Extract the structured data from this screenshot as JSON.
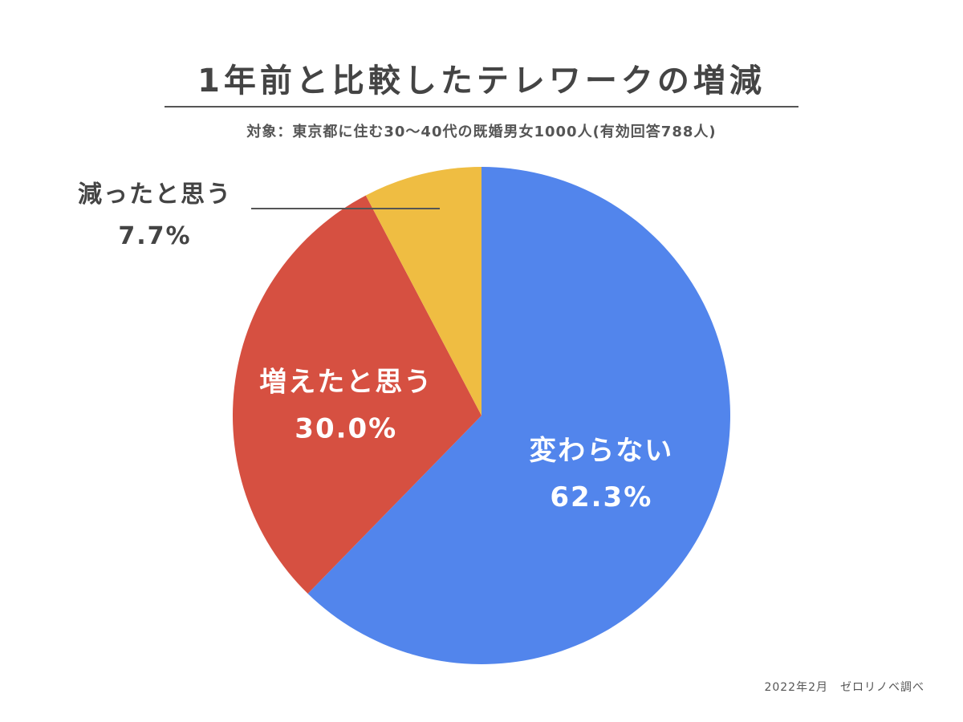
{
  "page": {
    "source_note": "2022年2月　ゼロリノベ調べ"
  },
  "chart_data": {
    "type": "pie",
    "title": "1年前と比較したテレワークの増減",
    "subtitle": "対象：東京都に住む30〜40代の既婚男女1000人(有効回答788人)",
    "slices": [
      {
        "label": "変わらない",
        "value": 62.3,
        "value_text": "62.3%",
        "color": "#5285EC"
      },
      {
        "label": "増えたと思う",
        "value": 30.0,
        "value_text": "30.0%",
        "color": "#D65041"
      },
      {
        "label": "減ったと思う",
        "value": 7.7,
        "value_text": "7.7%",
        "color": "#EFBD42"
      }
    ],
    "start_angle": "12 o'clock",
    "direction": "clockwise",
    "legend": "none",
    "label_colors": {
      "inside": "#ffffff",
      "outside": "#444444",
      "leader_line": "#555555"
    }
  }
}
